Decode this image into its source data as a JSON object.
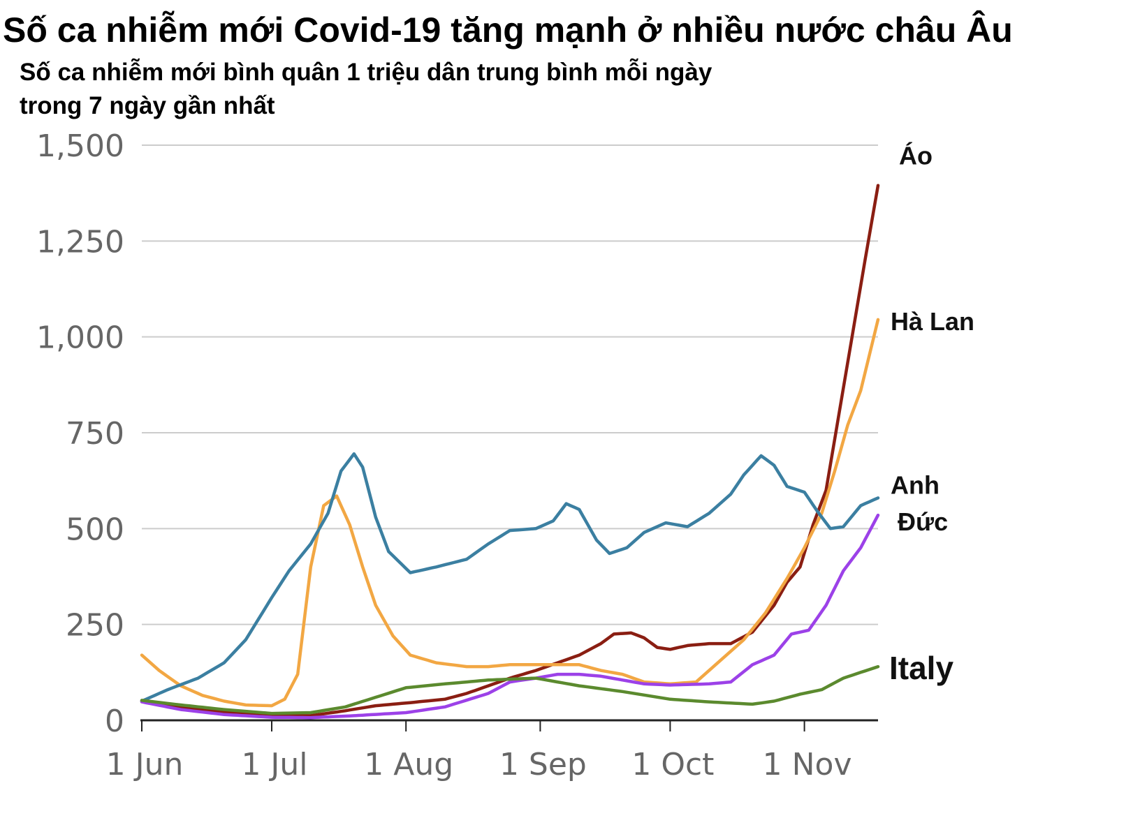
{
  "chart_data": {
    "type": "line",
    "title": "Số ca nhiễm mới Covid-19 tăng mạnh ở nhiều nước châu Âu",
    "subtitle_lines": [
      "Số ca nhiễm mới bình quân 1 triệu dân trung bình mỗi ngày",
      "trong 7 ngày gần nhất"
    ],
    "xlabel": "",
    "ylabel": "",
    "ylim": [
      0,
      1500
    ],
    "yticks": [
      0,
      250,
      500,
      750,
      1000,
      1250,
      1500
    ],
    "ytick_labels": [
      "0",
      "250",
      "500",
      "750",
      "1,000",
      "1,250",
      "1,500"
    ],
    "xlim": [
      "2021-06-01",
      "2021-11-18"
    ],
    "xticks": [
      "2021-06-01",
      "2021-07-01",
      "2021-08-01",
      "2021-09-01",
      "2021-10-01",
      "2021-11-01"
    ],
    "xtick_labels": [
      "1 Jun",
      "1 Jul",
      "1 Aug",
      "1 Sep",
      "1 Oct",
      "1 Nov"
    ],
    "grid": true,
    "legend": "direct labels at line ends",
    "series": [
      {
        "name": "Áo",
        "color": "#8a1e12",
        "label_size": 36,
        "points": [
          [
            "2021-06-01",
            50
          ],
          [
            "2021-06-10",
            35
          ],
          [
            "2021-06-20",
            22
          ],
          [
            "2021-07-01",
            12
          ],
          [
            "2021-07-10",
            12
          ],
          [
            "2021-07-18",
            25
          ],
          [
            "2021-07-25",
            38
          ],
          [
            "2021-08-01",
            45
          ],
          [
            "2021-08-10",
            55
          ],
          [
            "2021-08-15",
            70
          ],
          [
            "2021-08-20",
            90
          ],
          [
            "2021-08-25",
            110
          ],
          [
            "2021-08-31",
            130
          ],
          [
            "2021-09-05",
            150
          ],
          [
            "2021-09-10",
            170
          ],
          [
            "2021-09-15",
            200
          ],
          [
            "2021-09-18",
            225
          ],
          [
            "2021-09-22",
            228
          ],
          [
            "2021-09-25",
            215
          ],
          [
            "2021-09-28",
            190
          ],
          [
            "2021-10-01",
            185
          ],
          [
            "2021-10-05",
            195
          ],
          [
            "2021-10-10",
            200
          ],
          [
            "2021-10-15",
            200
          ],
          [
            "2021-10-20",
            230
          ],
          [
            "2021-10-25",
            300
          ],
          [
            "2021-10-28",
            360
          ],
          [
            "2021-10-31",
            400
          ],
          [
            "2021-11-03",
            510
          ],
          [
            "2021-11-06",
            600
          ],
          [
            "2021-11-09",
            800
          ],
          [
            "2021-11-12",
            1000
          ],
          [
            "2021-11-15",
            1200
          ],
          [
            "2021-11-18",
            1395
          ]
        ]
      },
      {
        "name": "Hà Lan",
        "color": "#f2a743",
        "label_size": 36,
        "points": [
          [
            "2021-06-01",
            170
          ],
          [
            "2021-06-05",
            130
          ],
          [
            "2021-06-10",
            90
          ],
          [
            "2021-06-15",
            65
          ],
          [
            "2021-06-20",
            50
          ],
          [
            "2021-06-25",
            40
          ],
          [
            "2021-07-01",
            38
          ],
          [
            "2021-07-04",
            55
          ],
          [
            "2021-07-07",
            120
          ],
          [
            "2021-07-10",
            400
          ],
          [
            "2021-07-13",
            560
          ],
          [
            "2021-07-16",
            585
          ],
          [
            "2021-07-19",
            510
          ],
          [
            "2021-07-22",
            400
          ],
          [
            "2021-07-25",
            300
          ],
          [
            "2021-07-29",
            220
          ],
          [
            "2021-08-02",
            170
          ],
          [
            "2021-08-08",
            150
          ],
          [
            "2021-08-15",
            140
          ],
          [
            "2021-08-20",
            140
          ],
          [
            "2021-08-25",
            145
          ],
          [
            "2021-08-31",
            145
          ],
          [
            "2021-09-05",
            145
          ],
          [
            "2021-09-10",
            145
          ],
          [
            "2021-09-15",
            130
          ],
          [
            "2021-09-20",
            120
          ],
          [
            "2021-09-25",
            100
          ],
          [
            "2021-10-01",
            95
          ],
          [
            "2021-10-07",
            100
          ],
          [
            "2021-10-12",
            150
          ],
          [
            "2021-10-18",
            210
          ],
          [
            "2021-10-23",
            280
          ],
          [
            "2021-10-28",
            370
          ],
          [
            "2021-11-01",
            450
          ],
          [
            "2021-11-05",
            540
          ],
          [
            "2021-11-08",
            650
          ],
          [
            "2021-11-11",
            770
          ],
          [
            "2021-11-14",
            860
          ],
          [
            "2021-11-18",
            1045
          ]
        ]
      },
      {
        "name": "Anh",
        "color": "#3b7fa1",
        "label_size": 36,
        "points": [
          [
            "2021-06-01",
            50
          ],
          [
            "2021-06-07",
            80
          ],
          [
            "2021-06-14",
            110
          ],
          [
            "2021-06-20",
            150
          ],
          [
            "2021-06-25",
            210
          ],
          [
            "2021-07-01",
            320
          ],
          [
            "2021-07-05",
            390
          ],
          [
            "2021-07-10",
            460
          ],
          [
            "2021-07-14",
            540
          ],
          [
            "2021-07-17",
            650
          ],
          [
            "2021-07-20",
            695
          ],
          [
            "2021-07-22",
            660
          ],
          [
            "2021-07-25",
            530
          ],
          [
            "2021-07-28",
            440
          ],
          [
            "2021-08-02",
            385
          ],
          [
            "2021-08-08",
            400
          ],
          [
            "2021-08-15",
            420
          ],
          [
            "2021-08-20",
            460
          ],
          [
            "2021-08-25",
            495
          ],
          [
            "2021-08-31",
            500
          ],
          [
            "2021-09-04",
            520
          ],
          [
            "2021-09-07",
            565
          ],
          [
            "2021-09-10",
            550
          ],
          [
            "2021-09-14",
            470
          ],
          [
            "2021-09-17",
            435
          ],
          [
            "2021-09-21",
            450
          ],
          [
            "2021-09-25",
            490
          ],
          [
            "2021-09-30",
            515
          ],
          [
            "2021-10-05",
            505
          ],
          [
            "2021-10-10",
            540
          ],
          [
            "2021-10-15",
            590
          ],
          [
            "2021-10-18",
            640
          ],
          [
            "2021-10-22",
            690
          ],
          [
            "2021-10-25",
            665
          ],
          [
            "2021-10-28",
            610
          ],
          [
            "2021-11-01",
            595
          ],
          [
            "2021-11-04",
            545
          ],
          [
            "2021-11-07",
            500
          ],
          [
            "2021-11-10",
            505
          ],
          [
            "2021-11-14",
            560
          ],
          [
            "2021-11-18",
            580
          ]
        ]
      },
      {
        "name": "Đức",
        "color": "#9c41e8",
        "label_size": 36,
        "points": [
          [
            "2021-06-01",
            48
          ],
          [
            "2021-06-10",
            28
          ],
          [
            "2021-06-20",
            15
          ],
          [
            "2021-07-01",
            8
          ],
          [
            "2021-07-10",
            7
          ],
          [
            "2021-07-20",
            12
          ],
          [
            "2021-08-01",
            20
          ],
          [
            "2021-08-10",
            35
          ],
          [
            "2021-08-20",
            70
          ],
          [
            "2021-08-25",
            100
          ],
          [
            "2021-08-31",
            110
          ],
          [
            "2021-09-05",
            120
          ],
          [
            "2021-09-10",
            120
          ],
          [
            "2021-09-15",
            115
          ],
          [
            "2021-09-20",
            105
          ],
          [
            "2021-09-25",
            95
          ],
          [
            "2021-10-01",
            92
          ],
          [
            "2021-10-10",
            95
          ],
          [
            "2021-10-15",
            100
          ],
          [
            "2021-10-20",
            145
          ],
          [
            "2021-10-25",
            170
          ],
          [
            "2021-10-29",
            225
          ],
          [
            "2021-11-02",
            235
          ],
          [
            "2021-11-06",
            300
          ],
          [
            "2021-11-10",
            390
          ],
          [
            "2021-11-14",
            450
          ],
          [
            "2021-11-18",
            535
          ]
        ]
      },
      {
        "name": "Italy",
        "color": "#5b8a2e",
        "label_size": 46,
        "points": [
          [
            "2021-06-01",
            52
          ],
          [
            "2021-06-10",
            40
          ],
          [
            "2021-06-20",
            28
          ],
          [
            "2021-07-01",
            18
          ],
          [
            "2021-07-10",
            20
          ],
          [
            "2021-07-18",
            35
          ],
          [
            "2021-07-25",
            60
          ],
          [
            "2021-08-01",
            85
          ],
          [
            "2021-08-10",
            95
          ],
          [
            "2021-08-20",
            105
          ],
          [
            "2021-08-31",
            110
          ],
          [
            "2021-09-10",
            90
          ],
          [
            "2021-09-20",
            75
          ],
          [
            "2021-10-01",
            55
          ],
          [
            "2021-10-10",
            48
          ],
          [
            "2021-10-20",
            42
          ],
          [
            "2021-10-25",
            50
          ],
          [
            "2021-10-31",
            68
          ],
          [
            "2021-11-05",
            80
          ],
          [
            "2021-11-10",
            110
          ],
          [
            "2021-11-14",
            125
          ],
          [
            "2021-11-18",
            140
          ]
        ]
      }
    ]
  }
}
